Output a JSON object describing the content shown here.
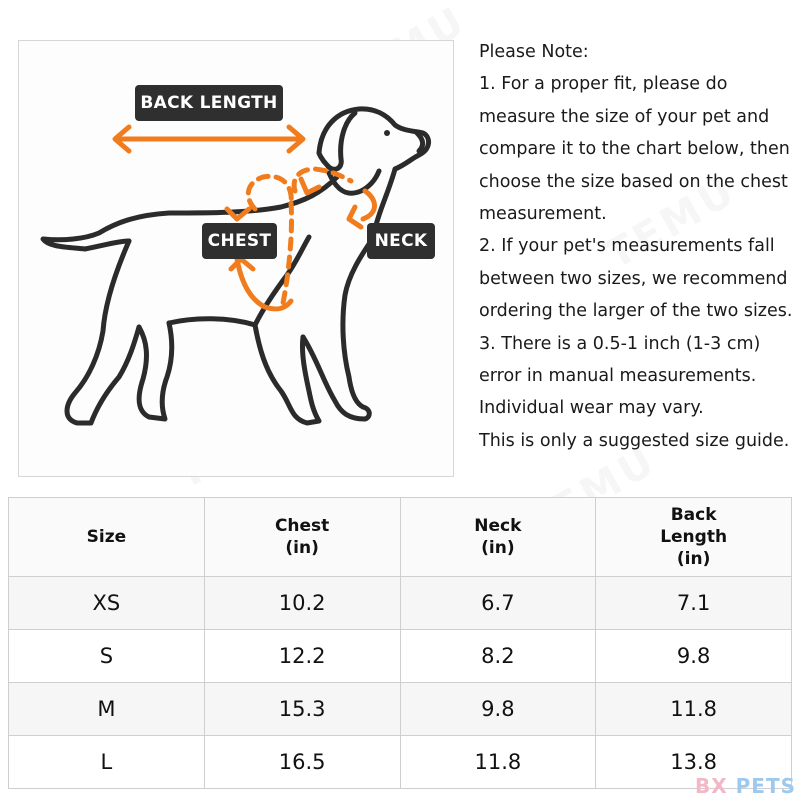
{
  "diagram": {
    "labels": {
      "back_length": "BACK LENGTH",
      "chest": "CHEST",
      "neck": "NECK"
    },
    "colors": {
      "outline": "#2b2b2b",
      "arrow": "#f07c1e",
      "tag_bg": "#2f2f2f"
    }
  },
  "notes": {
    "lines": [
      "Please Note:",
      "1. For a proper fit, please do",
      "measure the size of your pet and",
      "compare it to the chart below, then",
      "choose the size based on the chest",
      "measurement.",
      "2. If your pet's measurements fall",
      "between two sizes, we recommend",
      "ordering the larger of the two sizes.",
      "3. There is a 0.5-1 inch (1-3 cm)",
      "error in manual measurements.",
      "Individual wear may vary.",
      "This is only a suggested size guide."
    ]
  },
  "chart_data": {
    "type": "table",
    "columns": [
      {
        "lines": [
          "Size"
        ]
      },
      {
        "lines": [
          "Chest",
          "(in)"
        ]
      },
      {
        "lines": [
          "Neck",
          "(in)"
        ]
      },
      {
        "lines": [
          "Back",
          "Length",
          "(in)"
        ]
      }
    ],
    "rows": [
      [
        "XS",
        "10.2",
        "6.7",
        "7.1"
      ],
      [
        "S",
        "12.2",
        "8.2",
        "9.8"
      ],
      [
        "M",
        "15.3",
        "9.8",
        "11.8"
      ],
      [
        "L",
        "16.5",
        "11.8",
        "13.8"
      ]
    ]
  },
  "brand": {
    "part1": "BX",
    "part2": "PETS"
  },
  "watermark_text": "TEMU"
}
